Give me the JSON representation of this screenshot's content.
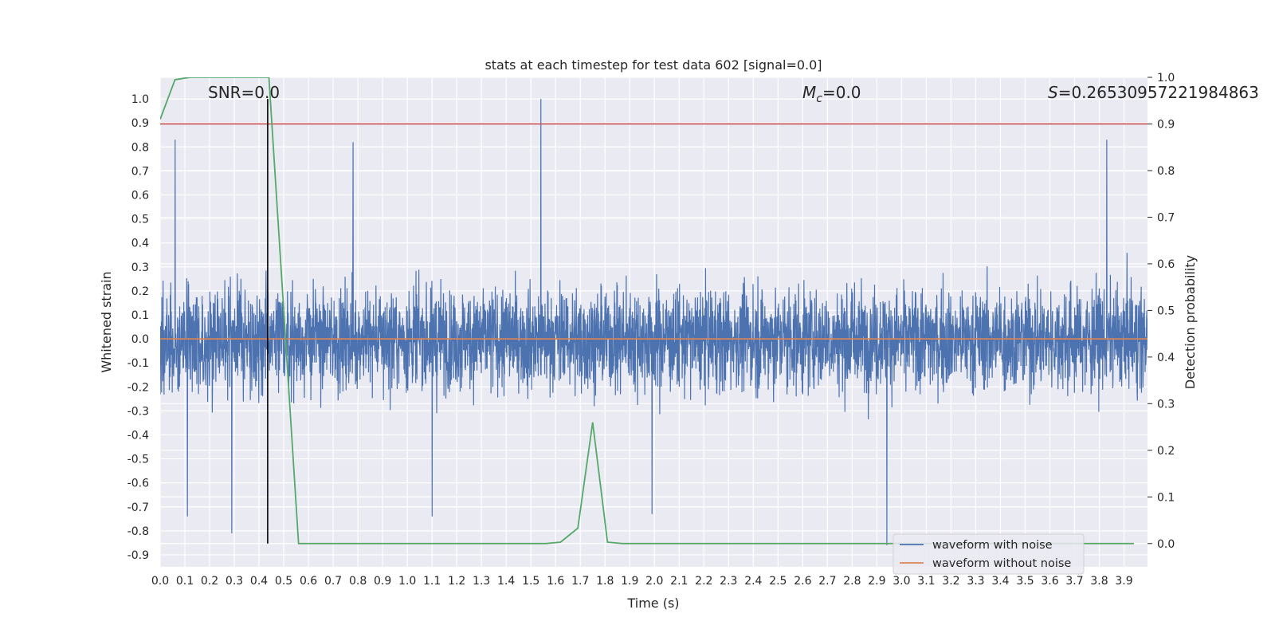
{
  "chart_data": {
    "type": "line",
    "title": "stats at each timestep for test data 602 [signal=0.0]",
    "xlabel": "Time (s)",
    "ylabel_left": "Whitened strain",
    "ylabel_right": "Detection probability",
    "xlim": [
      0.0,
      3.995
    ],
    "ylim_left": [
      -0.95,
      1.09
    ],
    "ylim_right": [
      -0.05,
      1.0
    ],
    "x_ticks": [
      0.0,
      0.1,
      0.2,
      0.3,
      0.4,
      0.5,
      0.6,
      0.7,
      0.8,
      0.9,
      1.0,
      1.1,
      1.2,
      1.3,
      1.4,
      1.5,
      1.6,
      1.7,
      1.8,
      1.9,
      2.0,
      2.1,
      2.2,
      2.3,
      2.4,
      2.5,
      2.6,
      2.7,
      2.8,
      2.9,
      3.0,
      3.1,
      3.2,
      3.3,
      3.4,
      3.5,
      3.6,
      3.7,
      3.8,
      3.9
    ],
    "left_ticks": [
      1.0,
      0.9,
      0.8,
      0.7,
      0.6,
      0.5,
      0.4,
      0.3,
      0.2,
      0.1,
      0.0,
      -0.1,
      -0.2,
      -0.3,
      -0.4,
      -0.5,
      -0.6,
      -0.7,
      -0.8,
      -0.9
    ],
    "right_ticks": [
      0.0,
      0.1,
      0.2,
      0.3,
      0.4,
      0.5,
      0.6,
      0.7,
      0.8,
      0.9,
      1.0
    ],
    "grid": true,
    "legend_position": "bottom-right",
    "series": [
      {
        "name": "waveform with noise",
        "axis": "left",
        "color": "#4c72b0",
        "description": "noisy strain, ~4096 samples",
        "seed": 602,
        "spikes": [
          [
            0.06,
            0.83
          ],
          [
            0.78,
            0.82
          ],
          [
            1.54,
            1.0
          ],
          [
            3.83,
            0.83
          ],
          [
            0.29,
            -0.81
          ],
          [
            2.94,
            -0.86
          ],
          [
            1.1,
            -0.74
          ],
          [
            0.11,
            -0.74
          ],
          [
            1.99,
            -0.73
          ]
        ]
      },
      {
        "name": "waveform without noise",
        "axis": "left",
        "color": "#dd8452",
        "x": [
          0.0,
          3.995
        ],
        "y": [
          0.0,
          0.0
        ]
      },
      {
        "name": "detection probability",
        "axis": "right",
        "color": "#55a868",
        "x": [
          0.0,
          0.06,
          0.12,
          0.19,
          0.25,
          0.31,
          0.37,
          0.44,
          0.56,
          0.62,
          0.69,
          0.75,
          0.81,
          0.87,
          0.94,
          1.0,
          1.06,
          1.12,
          1.19,
          1.25,
          1.31,
          1.37,
          1.44,
          1.5,
          1.56,
          1.62,
          1.69,
          1.75,
          1.81,
          1.87,
          1.94,
          2.0,
          2.5,
          3.0,
          3.5,
          3.94
        ],
        "y": [
          0.91,
          0.995,
          1.0,
          1.0,
          1.0,
          1.0,
          1.0,
          1.0,
          0.0,
          0.0,
          0.0,
          0.0,
          0.0,
          0.0,
          0.0,
          0.0,
          0.0,
          0.0,
          0.0,
          0.0,
          0.0,
          0.0,
          0.0,
          0.0,
          0.0,
          0.003,
          0.033,
          0.26,
          0.003,
          0.0,
          0.0,
          0.0,
          0.0,
          0.0,
          0.0,
          0.0
        ]
      }
    ],
    "threshold": {
      "axis": "right",
      "value": 0.9,
      "color": "#c44e52"
    },
    "marker_time": {
      "x": 0.435,
      "color": "#000000"
    },
    "annotations": {
      "snr": "SNR=0.0",
      "mc_symbol": "M",
      "mc_sub": "c",
      "mc_value": "=0.0",
      "s_symbol": "S",
      "s_value": "=0.26530957221984863"
    }
  }
}
